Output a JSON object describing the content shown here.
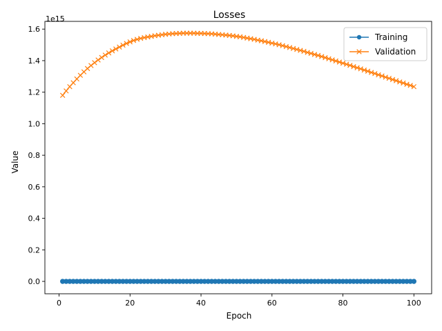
{
  "chart_data": {
    "type": "line",
    "title": "Losses",
    "xlabel": "Epoch",
    "ylabel": "Value",
    "y_scale_label": "1e15",
    "xlim": [
      -4,
      105
    ],
    "ylim": [
      -0.0785,
      1.649
    ],
    "xticks": [
      0,
      20,
      40,
      60,
      80,
      100
    ],
    "yticks": [
      0.0,
      0.2,
      0.4,
      0.6,
      0.8,
      1.0,
      1.2,
      1.4,
      1.6
    ],
    "ytick_labels": [
      "0.0",
      "0.2",
      "0.4",
      "0.6",
      "0.8",
      "1.0",
      "1.2",
      "1.4",
      "1.6"
    ],
    "grid": false,
    "legend_position": "top-right",
    "x": [
      1,
      2,
      3,
      4,
      5,
      6,
      7,
      8,
      9,
      10,
      11,
      12,
      13,
      14,
      15,
      16,
      17,
      18,
      19,
      20,
      21,
      22,
      23,
      24,
      25,
      26,
      27,
      28,
      29,
      30,
      31,
      32,
      33,
      34,
      35,
      36,
      37,
      38,
      39,
      40,
      41,
      42,
      43,
      44,
      45,
      46,
      47,
      48,
      49,
      50,
      51,
      52,
      53,
      54,
      55,
      56,
      57,
      58,
      59,
      60,
      61,
      62,
      63,
      64,
      65,
      66,
      67,
      68,
      69,
      70,
      71,
      72,
      73,
      74,
      75,
      76,
      77,
      78,
      79,
      80,
      81,
      82,
      83,
      84,
      85,
      86,
      87,
      88,
      89,
      90,
      91,
      92,
      93,
      94,
      95,
      96,
      97,
      98,
      99,
      100
    ],
    "series": [
      {
        "name": "Training",
        "color": "#1f77b4",
        "marker": "circle",
        "values": [
          0,
          0,
          0,
          0,
          0,
          0,
          0,
          0,
          0,
          0,
          0,
          0,
          0,
          0,
          0,
          0,
          0,
          0,
          0,
          0,
          0,
          0,
          0,
          0,
          0,
          0,
          0,
          0,
          0,
          0,
          0,
          0,
          0,
          0,
          0,
          0,
          0,
          0,
          0,
          0,
          0,
          0,
          0,
          0,
          0,
          0,
          0,
          0,
          0,
          0,
          0,
          0,
          0,
          0,
          0,
          0,
          0,
          0,
          0,
          0,
          0,
          0,
          0,
          0,
          0,
          0,
          0,
          0,
          0,
          0,
          0,
          0,
          0,
          0,
          0,
          0,
          0,
          0,
          0,
          0,
          0,
          0,
          0,
          0,
          0,
          0,
          0,
          0,
          0,
          0,
          0,
          0,
          0,
          0,
          0,
          0,
          0,
          0,
          0,
          0
        ]
      },
      {
        "name": "Validation",
        "color": "#ff7f0e",
        "marker": "x",
        "values": [
          1.18,
          1.208,
          1.235,
          1.26,
          1.284,
          1.307,
          1.329,
          1.35,
          1.369,
          1.387,
          1.404,
          1.42,
          1.435,
          1.449,
          1.462,
          1.474,
          1.486,
          1.498,
          1.509,
          1.519,
          1.528,
          1.535,
          1.541,
          1.546,
          1.55,
          1.554,
          1.558,
          1.561,
          1.564,
          1.567,
          1.569,
          1.571,
          1.572,
          1.573,
          1.574,
          1.574,
          1.574,
          1.574,
          1.573,
          1.573,
          1.572,
          1.571,
          1.57,
          1.568,
          1.566,
          1.564,
          1.562,
          1.56,
          1.557,
          1.554,
          1.551,
          1.547,
          1.543,
          1.539,
          1.535,
          1.53,
          1.526,
          1.521,
          1.516,
          1.511,
          1.506,
          1.501,
          1.495,
          1.489,
          1.483,
          1.477,
          1.471,
          1.465,
          1.459,
          1.452,
          1.446,
          1.439,
          1.433,
          1.426,
          1.419,
          1.412,
          1.405,
          1.398,
          1.391,
          1.384,
          1.377,
          1.37,
          1.362,
          1.355,
          1.348,
          1.34,
          1.333,
          1.325,
          1.318,
          1.31,
          1.303,
          1.295,
          1.288,
          1.28,
          1.273,
          1.265,
          1.258,
          1.25,
          1.243,
          1.235
        ]
      }
    ]
  }
}
